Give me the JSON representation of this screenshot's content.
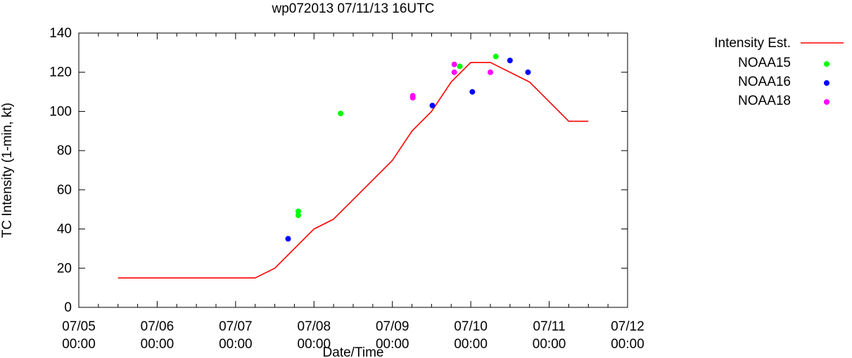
{
  "chart_data": {
    "type": "line",
    "title": "wp072013 07/11/13 16UTC",
    "xlabel": "Date/Time",
    "ylabel": "TC Intensity (1-min, kt)",
    "xlim": [
      0,
      7
    ],
    "ylim": [
      0,
      140
    ],
    "x_ticks": [
      {
        "value": 0,
        "line1": "07/05",
        "line2": "00:00"
      },
      {
        "value": 1,
        "line1": "07/06",
        "line2": "00:00"
      },
      {
        "value": 2,
        "line1": "07/07",
        "line2": "00:00"
      },
      {
        "value": 3,
        "line1": "07/08",
        "line2": "00:00"
      },
      {
        "value": 4,
        "line1": "07/09",
        "line2": "00:00"
      },
      {
        "value": 5,
        "line1": "07/10",
        "line2": "00:00"
      },
      {
        "value": 6,
        "line1": "07/11",
        "line2": "00:00"
      },
      {
        "value": 7,
        "line1": "07/12",
        "line2": "00:00"
      }
    ],
    "y_ticks": [
      0,
      20,
      40,
      60,
      80,
      100,
      120,
      140
    ],
    "grid": false,
    "legend_position": "outside-right",
    "series": [
      {
        "name": "Intensity Est.",
        "kind": "line",
        "color": "#ff0000",
        "x": [
          0.5,
          2.25,
          2.5,
          3.0,
          3.25,
          4.0,
          4.25,
          4.5,
          4.75,
          5.0,
          5.25,
          5.75,
          6.25,
          6.5
        ],
        "y": [
          15,
          15,
          20,
          40,
          45,
          75,
          90,
          100,
          115,
          125,
          125,
          115,
          95,
          95
        ]
      },
      {
        "name": "NOAA15",
        "kind": "scatter",
        "color": "#00ff00",
        "x": [
          2.8,
          2.8,
          3.34,
          4.86,
          5.32
        ],
        "y": [
          49,
          47,
          99,
          123,
          128
        ]
      },
      {
        "name": "NOAA16",
        "kind": "scatter",
        "color": "#0000ff",
        "x": [
          2.67,
          4.51,
          5.02,
          5.5,
          5.73
        ],
        "y": [
          35,
          103,
          110,
          126,
          120
        ]
      },
      {
        "name": "NOAA18",
        "kind": "scatter",
        "color": "#ff00ff",
        "x": [
          4.26,
          4.26,
          4.79,
          4.79,
          5.25
        ],
        "y": [
          108,
          107,
          124,
          120,
          120
        ]
      }
    ]
  }
}
